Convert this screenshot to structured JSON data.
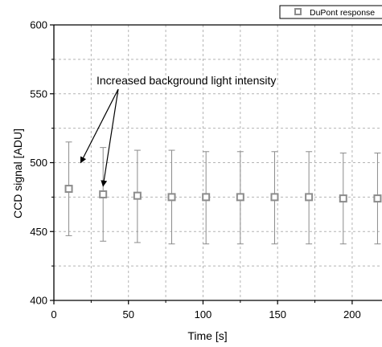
{
  "chart_data": {
    "type": "scatter",
    "title": "",
    "xlabel": "Time [s]",
    "ylabel": "CCD signal [ADU]",
    "xlim": [
      0,
      220
    ],
    "ylim": [
      400,
      600
    ],
    "x_major_ticks": [
      0,
      50,
      100,
      150,
      200
    ],
    "x_minor_ticks": [
      25,
      75,
      125,
      175
    ],
    "y_major_ticks": [
      400,
      450,
      500,
      550,
      600
    ],
    "y_minor_ticks": [
      425,
      475,
      525,
      575
    ],
    "grid": true,
    "grid_style": "dashed",
    "legend_position": "top-right",
    "series": [
      {
        "name": "DuPont response",
        "marker": "open-square",
        "color": "#8c8c8c",
        "x": [
          10,
          33,
          56,
          79,
          102,
          125,
          148,
          171,
          194,
          217
        ],
        "y": [
          481,
          477,
          476,
          475,
          475,
          475,
          475,
          475,
          474,
          474
        ],
        "err_low": [
          447,
          443,
          442,
          441,
          441,
          441,
          441,
          441,
          441,
          441
        ],
        "err_high": [
          515,
          511,
          509,
          509,
          508,
          508,
          508,
          508,
          507,
          507
        ]
      }
    ],
    "annotations": [
      {
        "text": "Increased background light intensity",
        "arrow_targets": [
          [
            18,
            500
          ],
          [
            33,
            483
          ]
        ]
      }
    ]
  }
}
